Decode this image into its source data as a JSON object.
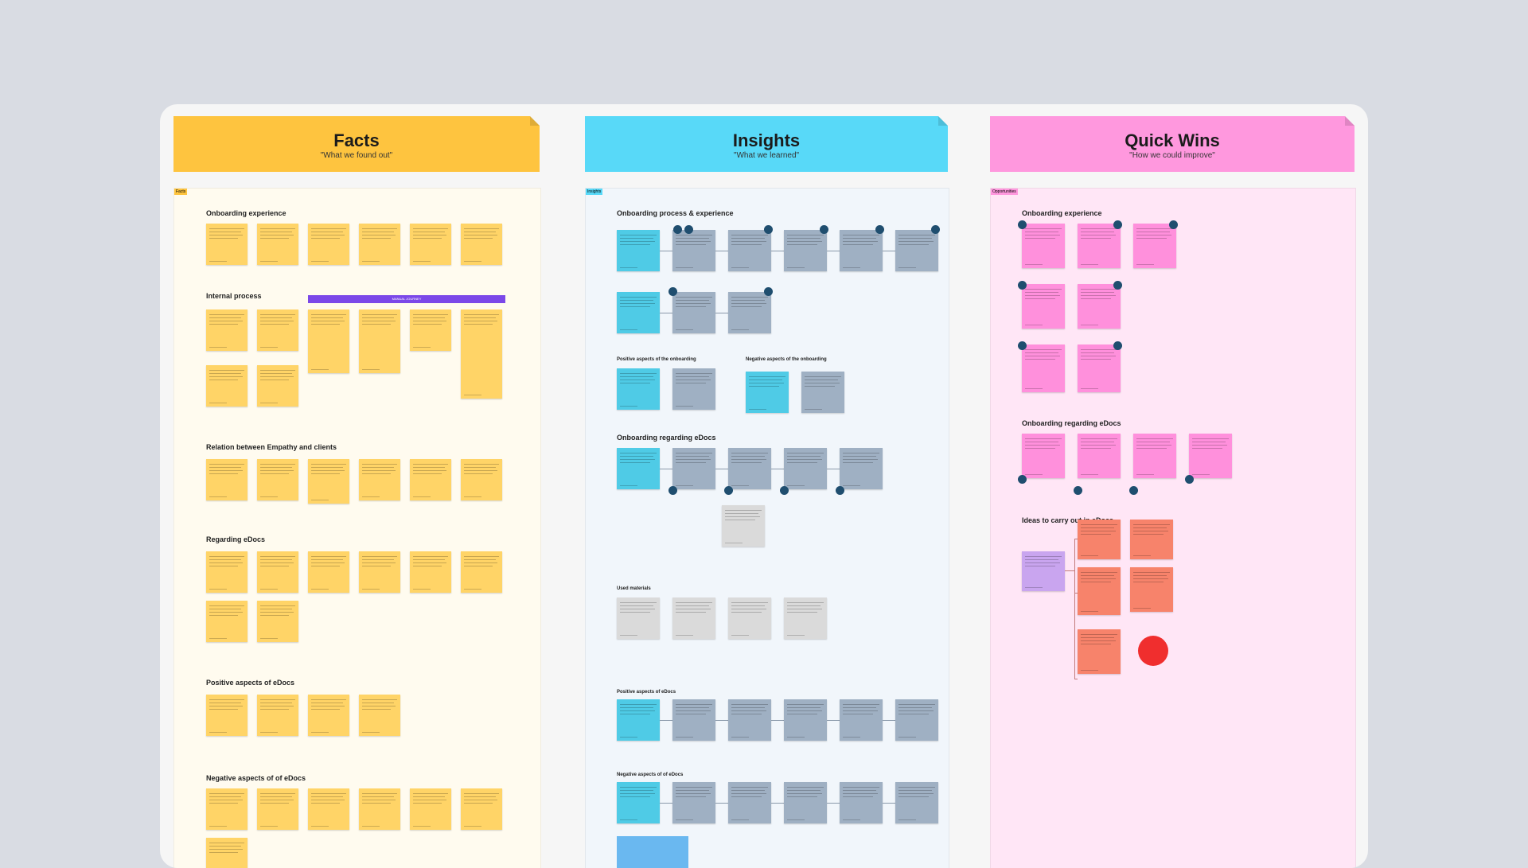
{
  "columns": [
    {
      "id": "facts",
      "title": "Facts",
      "subtitle": "\"What we found out\"",
      "header_color": "#fec43f",
      "panel_color": "#fffbef",
      "panel_tag": "Facts"
    },
    {
      "id": "insights",
      "title": "Insights",
      "subtitle": "\"What we learned\"",
      "header_color": "#58d9f8",
      "panel_color": "#f1f6fb",
      "panel_tag": "Insights"
    },
    {
      "id": "quickwins",
      "title": "Quick Wins",
      "subtitle": "\"How we could improve\"",
      "header_color": "#ff98de",
      "panel_color": "#ffe6f6",
      "panel_tag": "Opportunities"
    }
  ],
  "facts_sections": [
    "Onboarding experience",
    "Internal process",
    "Relation between Empathy and clients",
    "Regarding eDocs",
    "Positive aspects of eDocs",
    "Negative aspects of of eDocs"
  ],
  "facts_bar_label": "MANUAL JOURNEY",
  "insights_sections": [
    "Onboarding process & experience",
    "Positive aspects of the onboarding",
    "Negative aspects of the onboarding",
    "Onboarding regarding eDocs",
    "Used materials",
    "Positive aspects of eDocs",
    "Negative aspects of of eDocs"
  ],
  "quickwins_sections": [
    "Onboarding experience",
    "Onboarding regarding eDocs",
    "Ideas to carry out in eDocs"
  ]
}
